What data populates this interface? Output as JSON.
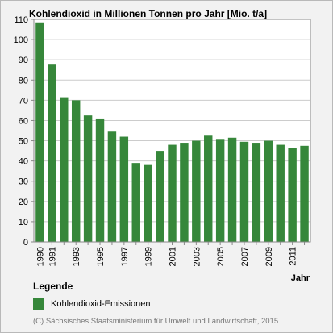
{
  "colors": {
    "bar": "#36873a",
    "plot_background": "#ffffff",
    "frame_background": "#f2f2f2",
    "gridline": "#cccccc",
    "axis": "#888888",
    "source_text": "#777777"
  },
  "legend": {
    "title": "Legende",
    "items": [
      {
        "label": "Kohlendioxid-Emissionen",
        "color": "#36873a"
      }
    ]
  },
  "source": "(C) Sächsisches Staatsministerium für Umwelt und Landwirtschaft, 2015",
  "chart_data": {
    "type": "bar",
    "title": "Kohlendioxid in Millionen Tonnen pro Jahr [Mio. t/a]",
    "xlabel": "Jahr",
    "ylabel": "",
    "ylim": [
      0,
      110
    ],
    "yticks": [
      0,
      10,
      20,
      30,
      40,
      50,
      60,
      70,
      80,
      90,
      100,
      110
    ],
    "grid": true,
    "legend_position": "bottom-left",
    "categories": [
      "1990",
      "1991",
      "1992",
      "1993",
      "1994",
      "1995",
      "1996",
      "1997",
      "1998",
      "1999",
      "2000",
      "2001",
      "2002",
      "2003",
      "2004",
      "2005",
      "2006",
      "2007",
      "2008",
      "2009",
      "2010",
      "2011",
      "2012"
    ],
    "tick_labels": [
      "1990",
      "1991",
      "1993",
      "1995",
      "1997",
      "1999",
      "2001",
      "2003",
      "2005",
      "2007",
      "2009",
      "2011"
    ],
    "series": [
      {
        "name": "Kohlendioxid-Emissionen",
        "values": [
          108.5,
          88,
          71.5,
          70,
          62.5,
          61,
          54.5,
          52,
          39,
          38,
          45,
          48,
          49,
          50,
          52.5,
          50.5,
          51.5,
          49.5,
          49,
          50,
          48,
          46.5,
          47.5
        ]
      }
    ]
  }
}
